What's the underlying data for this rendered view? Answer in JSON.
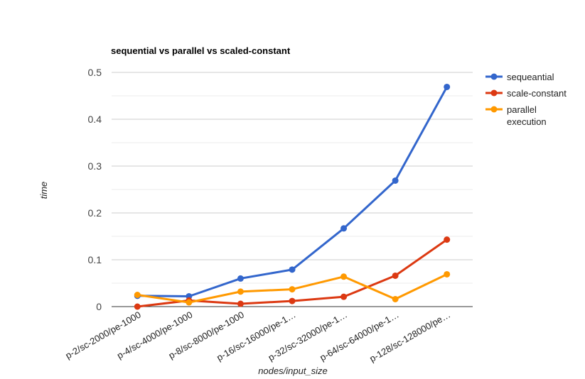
{
  "chart_data": {
    "type": "line",
    "title": "sequential vs parallel vs scaled-constant",
    "xlabel": "nodes/input_size",
    "ylabel": "time",
    "categories": [
      "p-2/sc-2000/pe-1000",
      "p-4/sc-4000/pe-1000",
      "p-8/sc-8000/pe-1000",
      "p-16/sc-16000/pe-1…",
      "p-32/sc-32000/pe-1…",
      "p-64/sc-64000/pe-1…",
      "p-128/sc-128000/pe…"
    ],
    "ylim": [
      0,
      0.5
    ],
    "yticks": [
      "0",
      "0.1",
      "0.2",
      "0.3",
      "0.4",
      "0.5"
    ],
    "grid": true,
    "legend_position": "right",
    "series": [
      {
        "name": "sequeantial",
        "color": "#3366cc",
        "values": [
          0.023,
          0.022,
          0.06,
          0.079,
          0.167,
          0.269,
          0.469
        ]
      },
      {
        "name": "scale-constant",
        "color": "#dc3912",
        "values": [
          0.0,
          0.013,
          0.006,
          0.012,
          0.021,
          0.066,
          0.143
        ]
      },
      {
        "name": "parallel execution",
        "color": "#ff9900",
        "values": [
          0.025,
          0.009,
          0.032,
          0.037,
          0.064,
          0.016,
          0.069
        ]
      }
    ]
  }
}
